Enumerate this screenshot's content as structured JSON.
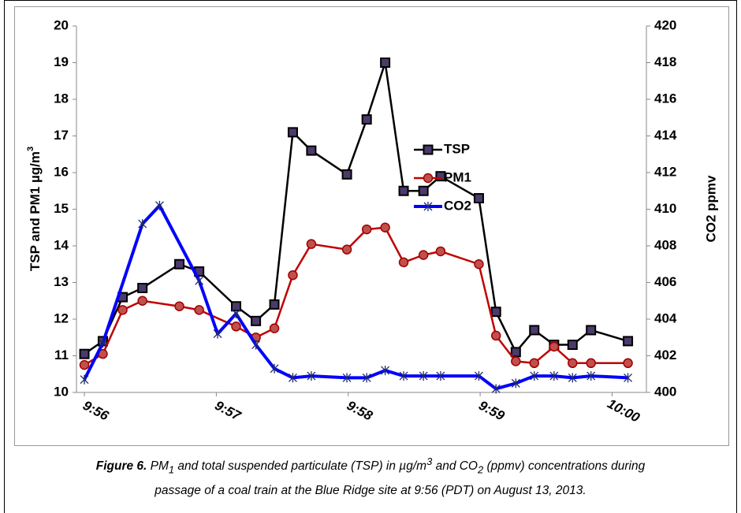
{
  "chart_data": {
    "type": "line",
    "ylabel": [
      "TSP and PM1 µg/m",
      "3"
    ],
    "y2label": "CO2 ppmv",
    "ylim": [
      10,
      20
    ],
    "yticks": [
      10,
      11,
      12,
      13,
      14,
      15,
      16,
      17,
      18,
      19,
      20
    ],
    "y2lim": [
      400,
      420
    ],
    "y2ticks": [
      400,
      402,
      404,
      406,
      408,
      410,
      412,
      414,
      416,
      418,
      420
    ],
    "xlim": [
      -0.06,
      4.26
    ],
    "xticks": [
      {
        "value": 0,
        "label": "9:56"
      },
      {
        "value": 1,
        "label": "9:57"
      },
      {
        "value": 2,
        "label": "9:58"
      },
      {
        "value": 3,
        "label": "9:59"
      },
      {
        "value": 4,
        "label": "10:00"
      }
    ],
    "legend": "upper-center",
    "series": [
      {
        "name": "TSP",
        "color": "#000000",
        "marker": "square",
        "marker_color": "#4b3a6b",
        "x": [
          0,
          0.14,
          0.29,
          0.44,
          0.72,
          0.87,
          1.15,
          1.3,
          1.44,
          1.58,
          1.72,
          1.99,
          2.14,
          2.28,
          2.42,
          2.57,
          2.7,
          2.99,
          3.12,
          3.27,
          3.41,
          3.56,
          3.7,
          3.84,
          4.12
        ],
        "values": [
          11.05,
          11.4,
          12.6,
          12.85,
          13.5,
          13.3,
          12.35,
          11.95,
          12.4,
          17.1,
          16.6,
          15.95,
          17.45,
          19.0,
          15.5,
          15.5,
          15.9,
          15.3,
          12.2,
          11.1,
          11.7,
          11.3,
          11.3,
          11.7,
          11.4
        ]
      },
      {
        "name": "PM1",
        "color": "#c00000",
        "marker": "circle",
        "marker_color": "#c0504d",
        "x": [
          0,
          0.14,
          0.29,
          0.44,
          0.72,
          0.87,
          1.15,
          1.3,
          1.44,
          1.58,
          1.72,
          1.99,
          2.14,
          2.28,
          2.42,
          2.57,
          2.7,
          2.99,
          3.12,
          3.27,
          3.41,
          3.56,
          3.7,
          3.84,
          4.12
        ],
        "values": [
          10.75,
          11.05,
          12.25,
          12.5,
          12.35,
          12.25,
          11.8,
          11.5,
          11.75,
          13.2,
          14.05,
          13.9,
          14.45,
          14.5,
          13.55,
          13.75,
          13.85,
          13.5,
          11.55,
          10.85,
          10.8,
          11.25,
          10.8,
          10.8,
          10.8
        ]
      },
      {
        "name": "CO2",
        "color": "#0000ff",
        "marker": "star",
        "marker_color": "#1f2a6b",
        "axis": "y2",
        "x": [
          0,
          0.14,
          0.44,
          0.57,
          0.87,
          1.01,
          1.15,
          1.3,
          1.44,
          1.58,
          1.72,
          1.99,
          2.14,
          2.28,
          2.42,
          2.57,
          2.7,
          2.99,
          3.12,
          3.27,
          3.41,
          3.56,
          3.7,
          3.84,
          4.12
        ],
        "values": [
          400.7,
          402.7,
          409.2,
          410.2,
          406.1,
          403.2,
          404.3,
          402.6,
          401.3,
          400.8,
          400.9,
          400.8,
          400.8,
          401.2,
          400.9,
          400.9,
          400.9,
          400.9,
          400.2,
          400.5,
          400.9,
          400.9,
          400.8,
          400.9,
          400.8
        ]
      }
    ],
    "caption": [
      "Figure 6.",
      " PM",
      "1",
      " and total suspended particulate (TSP) in µg/m",
      "3",
      " and CO",
      "2",
      " (ppmv) concentrations during",
      "passage of a coal train at the Blue Ridge site at 9:56 (PDT) on August 13, 2013."
    ]
  }
}
